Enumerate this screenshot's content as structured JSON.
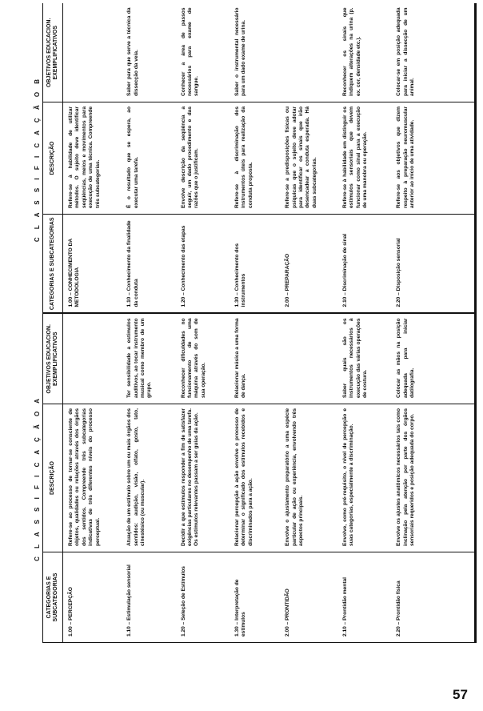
{
  "classification_a": "C L A S S I F I C A Ç Ã O   A",
  "classification_b": "C L A S S I F I C A Ç Ã O   B",
  "headers": [
    "CATEGORIAS E SUBCATEGORIAS",
    "DESCRIÇÃO",
    "OBJETIVOS EDUCACION. EXEMPLIFICATIVOS",
    "CATEGORIAS E SUBCATEGORIAS",
    "DESCRIÇÃO",
    "OBJETIVOS EDUCACION. EXEMPLIFICATIVOS"
  ],
  "rows": [
    {
      "a_cat": "1.00 – PERCEPÇÃO",
      "a_desc": "Refere-se ao processo de tornar-se consciente de objetos, qualidades ou relações através dos órgãos dos sentidos. Compreende três subcategorias indicativas de três diferentes níveis do processo perceptual.",
      "a_obj": "",
      "b_cat": "1.00 – CONHECIMENTO DA METODOLOGIA",
      "b_desc": "Refere-se à habilidade de utilizar métodos. O sujeito deve identificar seqüências, meios e movimentos para execução de uma técnica. Compreende três subcategorias.",
      "b_obj": ""
    },
    {
      "a_cat": "1.10 – Estimulação sensorial",
      "a_desc": "Atuação de um estímulo sobre um ou mais órgãos dos sentidos: audição, visão, olfato, gosto, tato, cinestésico (ou muscular).",
      "a_obj": "Ter sensibilidade a estímulos auditivos, ao tocar instrumento musical como membro de um grupo.",
      "b_cat": "1.10 – Conhecimento da finalidade da conduta",
      "b_desc": "É o resultado que se espera, ao executar uma tarefa.",
      "b_obj": "Saber para que serve a técnica da dissecção da veia."
    },
    {
      "a_cat": "1.20 – Seleção de Estímulos",
      "a_desc": "Decidir a que estímulos responder a fim de satisfazer exigências particulares no desempenho de uma tarefa. Os estímulos relevantes passam a ser guias da ação.",
      "a_obj": "Reconhecer dificuldades no funcionamento de uma máquina através do som de sua operação.",
      "b_cat": "1.20 – Conhecimento das etapas",
      "b_desc": "Envolve descrição da seqüência a seguir, um dado procedimento e das razões que o justificam.",
      "b_obj": "Conhecer a área de passos necessários para exame de sangue."
    },
    {
      "a_cat": "1.30 – Interpretação de estímulos",
      "a_desc": "Relacionar percepção à ação envolve o processo de determinar o significado dos estímulos recebidos e discriminados para a ação.",
      "a_obj": "Relacionar música a uma forma de dança.",
      "b_cat": "1.30 – Conhecimento dos instrumentos",
      "b_desc": "Refere-se à discriminação dos instrumentos úteis para realização da conduta proposta.",
      "b_obj": "Saber o instrumental necessário para um dado exame de urina."
    },
    {
      "a_cat": "2.00 – PRONTIDÃO",
      "a_desc": "Envolve o ajustamento preparatório a uma espécie particular de ação ou experiência, envolvendo três aspectos principais.",
      "a_obj": "",
      "b_cat": "2.00 – PREPARAÇÃO",
      "b_desc": "Refere-se a predisposições físicas ou psíquicas que o sujeito deve adotar para identificar os sinais que irão desencadear a conduta esperada. Há duas subcategorias.",
      "b_obj": ""
    },
    {
      "a_cat": "2.10 – Prontidão mental",
      "a_desc": "Envolve, como pré-requisito, o nível de percepção e suas categorias, especialmente a discriminação.",
      "a_obj": "Saber quais são os instrumentos necessários à execução das várias operações de costura.",
      "b_cat": "2.10 – Discriminação de sinal",
      "b_desc": "Refere-se à habilidade em distinguir os estímulos sensoriais que devem funcionar como sinal para a execução de uma manobra ou operação.",
      "b_obj": "Reconhecer os sinais que indiquem alterações na urina (p. ex. cor, densidade etc.)."
    },
    {
      "a_cat": "2.20 – Prontidão física",
      "a_desc": "Envolve os ajustes anatômicos necessários tais como inclinação pela atenção por parte dos órgãos sensoriais requeridos e posição adequada do corpo.",
      "a_obj": "Colocar as mãos na posição adequada para iniciar datilografia.",
      "b_cat": "2.20 – Disposição sensorial",
      "b_desc": "Refere-se aos objetivos que dizem respeito à preparação neuromuscular anterior ao início de uma atividade.",
      "b_obj": "Colocar-se em posição adequada para iniciar a dissecção de um animal."
    }
  ],
  "page_number": "57"
}
